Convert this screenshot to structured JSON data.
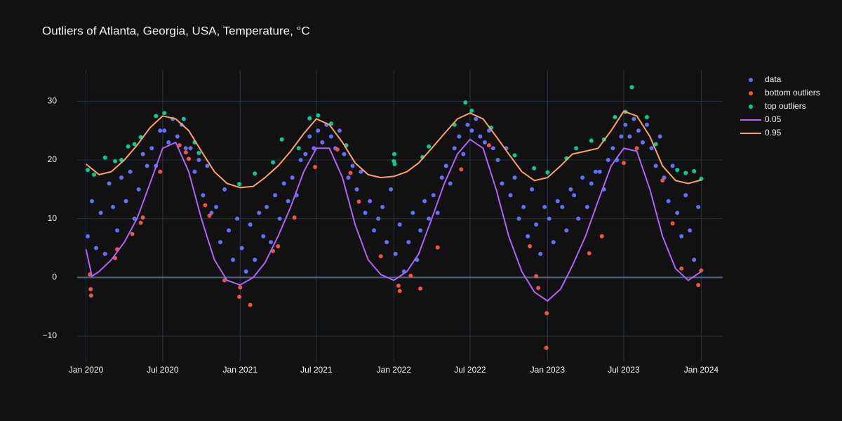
{
  "chart_data": {
    "type": "scatter",
    "title": "Outliers of Atlanta, Georgia, USA, Temperature, °C",
    "xlim": [
      "2019-12-11",
      "2024-02-21"
    ],
    "xticks": [
      {
        "value": "2020-01-01",
        "label": "Jan 2020"
      },
      {
        "value": "2020-07-01",
        "label": "Jul 2020"
      },
      {
        "value": "2021-01-01",
        "label": "Jan 2021"
      },
      {
        "value": "2021-07-01",
        "label": "Jul 2021"
      },
      {
        "value": "2022-01-01",
        "label": "Jan 2022"
      },
      {
        "value": "2022-07-01",
        "label": "Jul 2022"
      },
      {
        "value": "2023-01-01",
        "label": "Jan 2023"
      },
      {
        "value": "2023-07-01",
        "label": "Jul 2023"
      },
      {
        "value": "2024-01-01",
        "label": "Jan 2024"
      }
    ],
    "ylim": [
      -14.3,
      35.3
    ],
    "yticks": [
      {
        "value": -10,
        "label": "−10"
      },
      0,
      10,
      20,
      30
    ],
    "grid": true,
    "legend": "outside-right",
    "series": [
      {
        "name": "data",
        "color": "#636efa",
        "mode": "markers",
        "x": [
          "2020-01-05",
          "2020-01-15",
          "2020-01-25",
          "2020-02-05",
          "2020-02-15",
          "2020-02-25",
          "2020-03-05",
          "2020-03-15",
          "2020-03-25",
          "2020-04-05",
          "2020-04-15",
          "2020-04-25",
          "2020-05-05",
          "2020-05-15",
          "2020-05-25",
          "2020-06-05",
          "2020-06-15",
          "2020-06-25",
          "2020-07-05",
          "2020-07-15",
          "2020-07-25",
          "2020-08-05",
          "2020-08-15",
          "2020-08-25",
          "2020-09-05",
          "2020-09-15",
          "2020-09-25",
          "2020-10-05",
          "2020-10-15",
          "2020-10-25",
          "2020-11-05",
          "2020-11-15",
          "2020-11-25",
          "2020-12-05",
          "2020-12-15",
          "2020-12-25",
          "2021-01-05",
          "2021-01-15",
          "2021-01-25",
          "2021-02-05",
          "2021-02-15",
          "2021-02-25",
          "2021-03-05",
          "2021-03-15",
          "2021-03-25",
          "2021-04-05",
          "2021-04-15",
          "2021-04-25",
          "2021-05-05",
          "2021-05-15",
          "2021-05-25",
          "2021-06-05",
          "2021-06-15",
          "2021-06-25",
          "2021-07-05",
          "2021-07-15",
          "2021-07-25",
          "2021-08-05",
          "2021-08-15",
          "2021-08-25",
          "2021-09-05",
          "2021-09-15",
          "2021-09-25",
          "2021-10-05",
          "2021-10-15",
          "2021-10-25",
          "2021-11-05",
          "2021-11-15",
          "2021-11-25",
          "2021-12-05",
          "2021-12-15",
          "2021-12-25",
          "2022-01-05",
          "2022-01-15",
          "2022-01-25",
          "2022-02-05",
          "2022-02-15",
          "2022-02-25",
          "2022-03-05",
          "2022-03-15",
          "2022-03-25",
          "2022-04-05",
          "2022-04-15",
          "2022-04-25",
          "2022-05-05",
          "2022-05-15",
          "2022-05-25",
          "2022-06-05",
          "2022-06-15",
          "2022-06-25",
          "2022-07-05",
          "2022-07-15",
          "2022-07-25",
          "2022-08-05",
          "2022-08-15",
          "2022-08-25",
          "2022-09-05",
          "2022-09-15",
          "2022-09-25",
          "2022-10-05",
          "2022-10-15",
          "2022-10-25",
          "2022-11-05",
          "2022-11-15",
          "2022-11-25",
          "2022-12-05",
          "2022-12-15",
          "2022-12-25",
          "2023-01-05",
          "2023-01-15",
          "2023-01-25",
          "2023-02-05",
          "2023-02-15",
          "2023-02-25",
          "2023-03-05",
          "2023-03-15",
          "2023-03-25",
          "2023-04-05",
          "2023-04-15",
          "2023-04-25",
          "2023-05-05",
          "2023-05-15",
          "2023-05-25",
          "2023-06-05",
          "2023-06-15",
          "2023-06-25",
          "2023-07-05",
          "2023-07-15",
          "2023-07-25",
          "2023-08-05",
          "2023-08-15",
          "2023-08-25",
          "2023-09-05",
          "2023-09-15",
          "2023-09-25",
          "2023-10-05",
          "2023-10-15",
          "2023-10-25",
          "2023-11-05",
          "2023-11-15",
          "2023-11-25",
          "2023-12-05",
          "2023-12-15",
          "2023-12-25"
        ],
        "values": [
          7,
          13,
          5,
          11,
          4,
          16,
          12,
          8,
          17,
          13,
          18,
          10,
          15,
          21,
          19,
          22,
          19,
          25,
          25,
          23,
          27,
          24,
          26,
          22,
          22,
          18,
          20,
          14,
          19,
          11,
          12,
          6,
          15,
          8,
          3,
          10,
          5,
          1,
          9,
          3,
          11,
          7,
          12,
          6,
          14,
          10,
          16,
          13,
          17,
          14,
          20,
          21,
          24,
          22,
          25,
          23,
          26,
          24,
          22,
          25,
          21,
          17,
          19,
          15,
          18,
          11,
          13,
          8,
          10,
          12,
          6,
          15,
          4,
          9,
          1,
          6,
          11,
          3,
          8,
          13,
          10,
          14,
          11,
          17,
          19,
          16,
          22,
          24,
          21,
          26,
          25,
          27,
          24,
          23,
          25,
          22,
          20,
          16,
          22,
          14,
          17,
          10,
          12,
          7,
          15,
          9,
          4,
          12,
          10,
          6,
          13,
          12,
          8,
          15,
          14,
          10,
          17,
          12,
          16,
          18,
          18,
          15,
          20,
          22,
          20,
          24,
          26,
          24,
          27,
          25,
          23,
          26,
          22,
          19,
          24,
          17,
          13,
          19,
          11,
          7,
          14,
          8,
          3,
          12
        ]
      },
      {
        "name": "bottom outliers",
        "color": "#ef553b",
        "mode": "markers",
        "x": [
          "2020-01-10",
          "2020-01-12",
          "2020-01-13",
          "2020-03-10",
          "2020-03-15",
          "2020-04-20",
          "2020-05-10",
          "2020-05-15",
          "2020-06-25",
          "2020-08-10",
          "2020-08-25",
          "2020-09-01",
          "2020-10-10",
          "2020-10-20",
          "2020-11-25",
          "2020-12-30",
          "2021-01-01",
          "2021-01-25",
          "2021-03-20",
          "2021-04-01",
          "2021-05-10",
          "2021-06-28",
          "2021-08-20",
          "2021-09-20",
          "2021-10-10",
          "2021-12-01",
          "2022-01-12",
          "2022-01-15",
          "2022-02-10",
          "2022-03-05",
          "2022-04-15",
          "2022-06-10",
          "2022-08-15",
          "2022-11-20",
          "2022-12-05",
          "2022-12-10",
          "2022-12-29",
          "2022-12-30",
          "2023-04-10",
          "2023-05-10",
          "2023-07-01",
          "2023-08-01",
          "2023-10-01",
          "2023-10-25",
          "2023-11-15",
          "2023-12-25",
          "2024-01-01"
        ],
        "values": [
          0.5,
          -2,
          -3.1,
          3.3,
          4.8,
          7.4,
          9.3,
          10.2,
          18,
          22.5,
          21.3,
          20.2,
          12.3,
          10.5,
          -0.5,
          -3.3,
          -1.7,
          -4.7,
          4.5,
          5.3,
          10.2,
          18.8,
          21.8,
          17.8,
          12.9,
          3.6,
          -1.4,
          -2.3,
          0.3,
          -1.9,
          5.1,
          18.4,
          22.5,
          5.3,
          0.2,
          -1.8,
          -12,
          -6.1,
          4.1,
          7,
          19.5,
          22,
          16.5,
          9.2,
          1.5,
          -1.3,
          1.2
        ]
      },
      {
        "name": "top outliers",
        "color": "#00cc96",
        "mode": "markers",
        "x": [
          "2020-01-05",
          "2020-01-20",
          "2020-02-15",
          "2020-03-10",
          "2020-03-25",
          "2020-04-10",
          "2020-04-25",
          "2020-05-10",
          "2020-06-15",
          "2020-07-05",
          "2020-08-20",
          "2020-09-15",
          "2020-09-25",
          "2020-12-30",
          "2021-02-05",
          "2021-03-20",
          "2021-04-10",
          "2021-05-20",
          "2021-06-15",
          "2021-07-05",
          "2021-08-05",
          "2021-09-10",
          "2022-01-01",
          "2022-01-02",
          "2022-01-03",
          "2022-03-10",
          "2022-03-25",
          "2022-05-25",
          "2022-06-20",
          "2022-07-05",
          "2022-08-20",
          "2022-10-15",
          "2022-11-30",
          "2023-01-01",
          "2023-02-15",
          "2023-03-10",
          "2023-04-15",
          "2023-05-15",
          "2023-06-10",
          "2023-07-05",
          "2023-07-20",
          "2023-08-25",
          "2023-09-15",
          "2023-11-05",
          "2023-11-25",
          "2023-12-15",
          "2024-01-01"
        ],
        "values": [
          18.3,
          17.5,
          20.4,
          19.8,
          20,
          22.3,
          22.7,
          23.9,
          27.5,
          28,
          27,
          23,
          21.2,
          15.9,
          17.7,
          19.6,
          23.5,
          22,
          27.1,
          27.6,
          26.2,
          22.5,
          19.8,
          21,
          19.3,
          20.5,
          22.3,
          26,
          29.8,
          28.4,
          25.5,
          20.8,
          18.6,
          17.9,
          20.3,
          22,
          23.3,
          23.5,
          27.3,
          28.2,
          32.4,
          27.3,
          22.7,
          18.3,
          17.8,
          18.1,
          16.8
        ]
      },
      {
        "name": "0.05",
        "color": "#ab63fa",
        "mode": "lines",
        "x": [
          "2020-01-01",
          "2020-01-15",
          "2020-02-01",
          "2020-03-01",
          "2020-04-01",
          "2020-05-01",
          "2020-06-01",
          "2020-07-01",
          "2020-08-01",
          "2020-09-01",
          "2020-10-01",
          "2020-11-01",
          "2020-12-01",
          "2021-01-01",
          "2021-02-01",
          "2021-03-01",
          "2021-04-01",
          "2021-05-01",
          "2021-06-01",
          "2021-07-01",
          "2021-08-01",
          "2021-09-01",
          "2021-10-01",
          "2021-11-01",
          "2021-12-01",
          "2022-01-01",
          "2022-02-01",
          "2022-03-01",
          "2022-04-01",
          "2022-05-01",
          "2022-06-01",
          "2022-07-01",
          "2022-08-01",
          "2022-09-01",
          "2022-10-01",
          "2022-11-01",
          "2022-12-01",
          "2023-01-01",
          "2023-02-01",
          "2023-03-01",
          "2023-04-01",
          "2023-05-01",
          "2023-06-01",
          "2023-07-01",
          "2023-08-01",
          "2023-09-01",
          "2023-10-01",
          "2023-11-01",
          "2023-12-01",
          "2024-01-01"
        ],
        "values": [
          4.8,
          0.2,
          1,
          3,
          6,
          10,
          16,
          22,
          23,
          18,
          10,
          3,
          -0.5,
          -1.3,
          0,
          2.5,
          7,
          12,
          18,
          22,
          22,
          17,
          9,
          3,
          0.5,
          -0.5,
          1,
          4,
          10,
          16,
          21,
          23.5,
          22,
          15,
          7,
          1,
          -2.5,
          -4,
          -2,
          2,
          7,
          13,
          19,
          22,
          21.5,
          15,
          7,
          1.5,
          -0.5,
          1
        ]
      },
      {
        "name": "0.95",
        "color": "#FFA15A",
        "mode": "lines",
        "x": [
          "2020-01-01",
          "2020-02-01",
          "2020-03-01",
          "2020-04-01",
          "2020-05-01",
          "2020-06-01",
          "2020-07-01",
          "2020-08-01",
          "2020-09-01",
          "2020-10-01",
          "2020-11-01",
          "2020-12-01",
          "2021-01-01",
          "2021-02-01",
          "2021-03-01",
          "2021-04-01",
          "2021-05-01",
          "2021-06-01",
          "2021-07-01",
          "2021-08-01",
          "2021-09-01",
          "2021-10-01",
          "2021-11-01",
          "2021-12-01",
          "2022-01-01",
          "2022-02-01",
          "2022-03-01",
          "2022-04-01",
          "2022-05-01",
          "2022-06-01",
          "2022-07-01",
          "2022-08-01",
          "2022-09-01",
          "2022-10-01",
          "2022-11-01",
          "2022-12-01",
          "2023-01-01",
          "2023-02-01",
          "2023-03-01",
          "2023-04-01",
          "2023-05-01",
          "2023-06-01",
          "2023-07-01",
          "2023-08-01",
          "2023-09-01",
          "2023-10-01",
          "2023-11-01",
          "2023-12-01",
          "2024-01-01"
        ],
        "values": [
          19.3,
          17.5,
          18,
          20,
          22.5,
          25.5,
          27.5,
          27,
          25,
          21.5,
          18,
          16,
          15.3,
          15.5,
          17,
          19,
          21.5,
          24.5,
          27,
          26,
          23,
          19.5,
          17.5,
          17,
          17.2,
          18,
          19.5,
          22,
          24.5,
          27,
          28,
          27,
          24,
          21,
          18,
          16.5,
          17,
          19,
          21,
          21.5,
          22,
          25,
          28.3,
          27.5,
          24,
          19,
          16.5,
          16,
          16.6
        ]
      }
    ]
  }
}
